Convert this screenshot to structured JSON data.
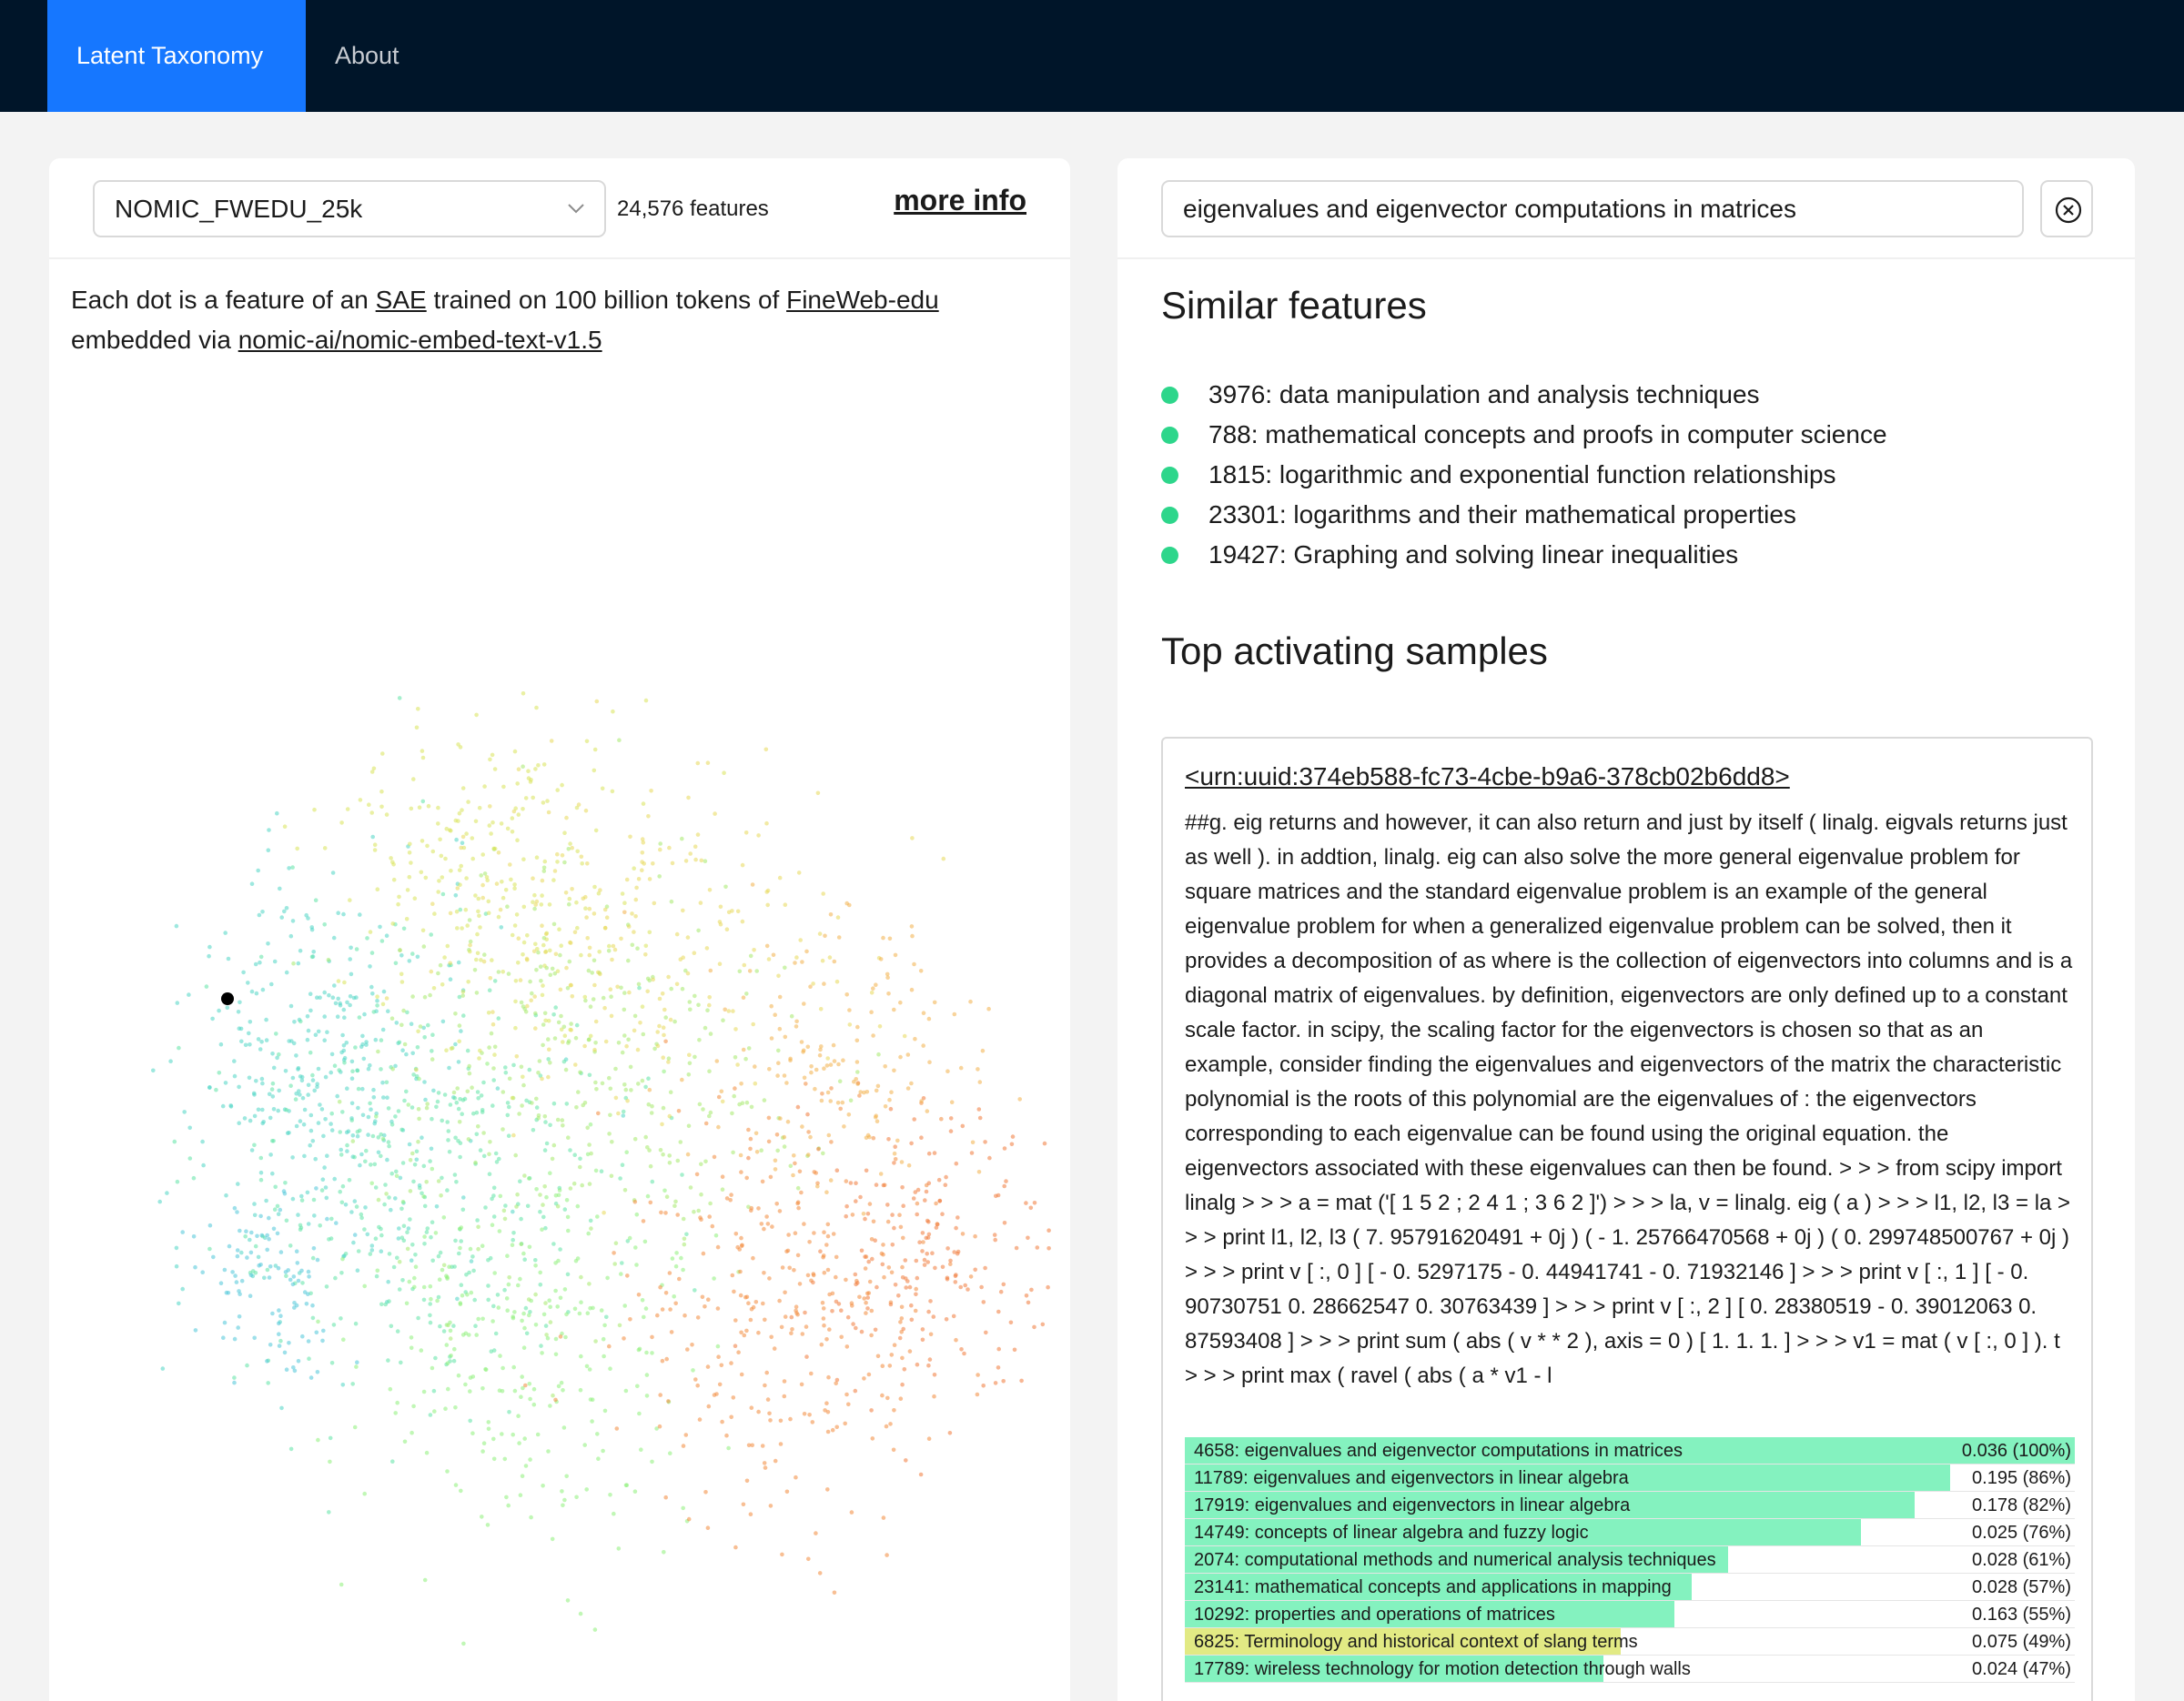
{
  "nav": {
    "items": [
      {
        "label": "Latent Taxonomy",
        "active": true
      },
      {
        "label": "About",
        "active": false
      }
    ]
  },
  "left": {
    "model_select": {
      "value": "NOMIC_FWEDU_25k"
    },
    "feature_count": "24,576 features",
    "more_info": "more info",
    "description": {
      "p1": "Each dot is a feature of an ",
      "sae": "SAE",
      "p2": " trained on 100 billion tokens of ",
      "fineweb": "FineWeb-edu",
      "p3": " embedded via ",
      "model": "nomic-ai/nomic-embed-text-v1.5"
    },
    "colors": {
      "highlight": "#000000"
    }
  },
  "right": {
    "search": {
      "value": "eigenvalues and eigenvector computations in matrices"
    },
    "similar_title": "Similar features",
    "similar": [
      "3976: data manipulation and analysis techniques",
      "788: mathematical concepts and proofs in computer science",
      "1815: logarithmic and exponential function relationships",
      "23301: logarithms and their mathematical properties",
      "19427: Graphing and solving linear inequalities"
    ],
    "top_title": "Top activating samples",
    "sample": {
      "id": "<urn:uuid:374eb588-fc73-4cbe-b9a6-378cb02b6dd8>",
      "text": "##g. eig returns and however, it can also return and just by itself ( linalg. eigvals returns just as well ). in addtion, linalg. eig can also solve the more general eigenvalue problem for square matrices and the standard eigenvalue problem is an example of the general eigenvalue problem for when a generalized eigenvalue problem can be solved, then it provides a decomposition of as where is the collection of eigenvectors into columns and is a diagonal matrix of eigenvalues. by definition, eigenvectors are only defined up to a constant scale factor. in scipy, the scaling factor for the eigenvectors is chosen so that as an example, consider finding the eigenvalues and eigenvectors of the matrix the characteristic polynomial is the roots of this polynomial are the eigenvalues of : the eigenvectors corresponding to each eigenvalue can be found using the original equation. the eigenvectors associated with these eigenvalues can then be found. > > > from scipy import linalg > > > a = mat ('[ 1 5 2 ; 2 4 1 ; 3 6 2 ]') > > > la, v = linalg. eig ( a ) > > > l1, l2, l3 = la > > > print l1, l2, l3 ( 7. 95791620491 + 0j ) ( - 1. 25766470568 + 0j ) ( 0. 299748500767 + 0j ) > > > print v [ :, 0 ] [ - 0. 5297175 - 0. 44941741 - 0. 71932146 ] > > > print v [ :, 1 ] [ - 0. 90730751 0. 28662547 0. 30763439 ] > > > print v [ :, 2 ] [ 0. 28380519 - 0. 39012063 0. 87593408 ] > > > print sum ( abs ( v * * 2 ), axis = 0 ) [ 1. 1. 1. ] > > > v1 = mat ( v [ :, 0 ] ). t > > > print max ( ravel ( abs ( a * v1 - l",
      "features": [
        {
          "label": "4658: eigenvalues and eigenvector computations in matrices",
          "value": "0.036 (100%)",
          "fraction": 1.0,
          "color": "#84f2bf"
        },
        {
          "label": "11789: eigenvalues and eigenvectors in linear algebra",
          "value": "0.195 (86%)",
          "fraction": 0.86,
          "color": "#84f2bf"
        },
        {
          "label": "17919: eigenvalues and eigenvectors in linear algebra",
          "value": "0.178 (82%)",
          "fraction": 0.82,
          "color": "#84f2bf"
        },
        {
          "label": "14749: concepts of linear algebra and fuzzy logic",
          "value": "0.025 (76%)",
          "fraction": 0.76,
          "color": "#84f2bf"
        },
        {
          "label": "2074: computational methods and numerical analysis techniques",
          "value": "0.028 (61%)",
          "fraction": 0.61,
          "color": "#84f2bf"
        },
        {
          "label": "23141: mathematical concepts and applications in mapping",
          "value": "0.028 (57%)",
          "fraction": 0.57,
          "color": "#84f2bf"
        },
        {
          "label": "10292: properties and operations of matrices",
          "value": "0.163 (55%)",
          "fraction": 0.55,
          "color": "#84f2bf"
        },
        {
          "label": "6825: Terminology and historical context of slang terms",
          "value": "0.075 (49%)",
          "fraction": 0.49,
          "color": "#e2ea84"
        },
        {
          "label": "17789: wireless technology for motion detection through walls",
          "value": "0.024 (47%)",
          "fraction": 0.47,
          "color": "#84f2bf"
        }
      ]
    }
  }
}
